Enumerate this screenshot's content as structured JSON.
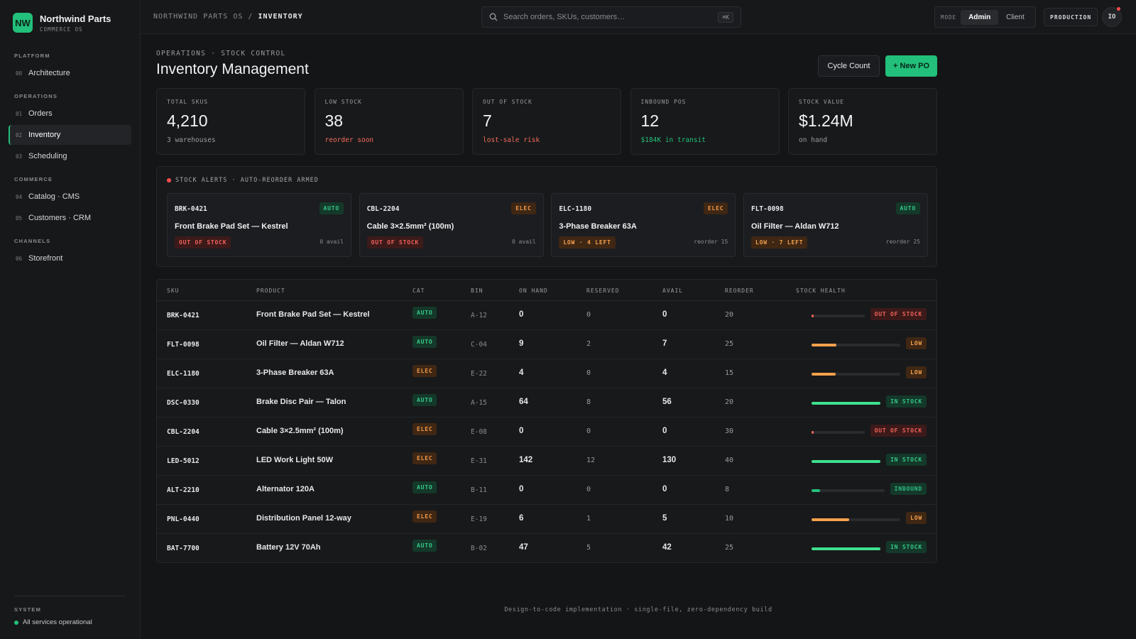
{
  "brand": {
    "logo": "NW",
    "name": "Northwind Parts",
    "sub": "COMMERCE OS"
  },
  "nav": {
    "platform_label": "PLATFORM",
    "platform": [
      {
        "num": "00",
        "label": "Architecture"
      }
    ],
    "operations_label": "OPERATIONS",
    "operations": [
      {
        "num": "01",
        "label": "Orders"
      },
      {
        "num": "02",
        "label": "Inventory",
        "active": true
      },
      {
        "num": "03",
        "label": "Scheduling"
      }
    ],
    "commerce_label": "COMMERCE",
    "commerce": [
      {
        "num": "04",
        "label": "Catalog · CMS"
      },
      {
        "num": "05",
        "label": "Customers · CRM"
      }
    ],
    "channels_label": "CHANNELS",
    "channels": [
      {
        "num": "06",
        "label": "Storefront"
      }
    ]
  },
  "system": {
    "label": "SYSTEM",
    "status": "All services operational"
  },
  "topbar": {
    "crumb_root": "NORTHWIND PARTS OS",
    "crumb_sep": "/",
    "crumb_current": "INVENTORY",
    "search_placeholder": "Search orders, SKUs, customers…",
    "search_kbd": "⌘K",
    "mode_label": "MODE",
    "mode_admin": "Admin",
    "mode_client": "Client",
    "env": "PRODUCTION",
    "avatar": "IO"
  },
  "page": {
    "eyebrow": "OPERATIONS · STOCK CONTROL",
    "title": "Inventory Management",
    "btn_cycle": "Cycle Count",
    "btn_new_po": "+ New PO"
  },
  "kpis": [
    {
      "label": "TOTAL SKUS",
      "value": "4,210",
      "note": "3 warehouses",
      "tone": "muted"
    },
    {
      "label": "LOW STOCK",
      "value": "38",
      "note": "reorder soon",
      "tone": "red"
    },
    {
      "label": "OUT OF STOCK",
      "value": "7",
      "note": "lost-sale risk",
      "tone": "red"
    },
    {
      "label": "INBOUND POS",
      "value": "12",
      "note": "$184K in transit",
      "tone": "green"
    },
    {
      "label": "STOCK VALUE",
      "value": "$1.24M",
      "note": "on hand",
      "tone": "muted"
    }
  ],
  "alerts": {
    "heading": "STOCK ALERTS · AUTO-REORDER ARMED",
    "cards": [
      {
        "sku": "BRK-0421",
        "cat": "AUTO",
        "name": "Front Brake Pad Set — Kestrel",
        "status": "OUT OF STOCK",
        "stat": "0 avail"
      },
      {
        "sku": "CBL-2204",
        "cat": "ELEC",
        "name": "Cable 3×2.5mm² (100m)",
        "status": "OUT OF STOCK",
        "stat": "0 avail"
      },
      {
        "sku": "ELC-1180",
        "cat": "ELEC",
        "name": "3-Phase Breaker 63A",
        "status": "LOW · 4 LEFT",
        "stat": "reorder 15"
      },
      {
        "sku": "FLT-0098",
        "cat": "AUTO",
        "name": "Oil Filter — Aldan W712",
        "status": "LOW · 7 LEFT",
        "stat": "reorder 25"
      }
    ]
  },
  "table": {
    "headers": [
      "SKU",
      "PRODUCT",
      "CAT",
      "BIN",
      "ON HAND",
      "RESERVED",
      "AVAIL",
      "REORDER",
      "STOCK HEALTH"
    ],
    "rows": [
      {
        "sku": "BRK-0421",
        "product": "Front Brake Pad Set — Kestrel",
        "cat": "AUTO",
        "bin": "A-12",
        "on_hand": "0",
        "reserved": "0",
        "avail": "0",
        "reorder": "20",
        "health": "OUT OF STOCK",
        "health_level": 0.02,
        "health_color": "#f0625a"
      },
      {
        "sku": "FLT-0098",
        "product": "Oil Filter — Aldan W712",
        "cat": "AUTO",
        "bin": "C-04",
        "on_hand": "9",
        "reserved": "2",
        "avail": "7",
        "reorder": "25",
        "health": "LOW",
        "health_level": 0.28,
        "health_color": "#f4a14c"
      },
      {
        "sku": "ELC-1180",
        "product": "3-Phase Breaker 63A",
        "cat": "ELEC",
        "bin": "E-22",
        "on_hand": "4",
        "reserved": "0",
        "avail": "4",
        "reorder": "15",
        "health": "LOW",
        "health_level": 0.27,
        "health_color": "#f4a14c"
      },
      {
        "sku": "DSC-0330",
        "product": "Brake Disc Pair — Talon",
        "cat": "AUTO",
        "bin": "A-15",
        "on_hand": "64",
        "reserved": "8",
        "avail": "56",
        "reorder": "20",
        "health": "IN STOCK",
        "health_level": 1.0,
        "health_color": "#3ee08e"
      },
      {
        "sku": "CBL-2204",
        "product": "Cable 3×2.5mm² (100m)",
        "cat": "ELEC",
        "bin": "E-08",
        "on_hand": "0",
        "reserved": "0",
        "avail": "0",
        "reorder": "30",
        "health": "OUT OF STOCK",
        "health_level": 0.02,
        "health_color": "#f0625a"
      },
      {
        "sku": "LED-5012",
        "product": "LED Work Light 50W",
        "cat": "ELEC",
        "bin": "E-31",
        "on_hand": "142",
        "reserved": "12",
        "avail": "130",
        "reorder": "40",
        "health": "IN STOCK",
        "health_level": 1.0,
        "health_color": "#3ee08e"
      },
      {
        "sku": "ALT-2210",
        "product": "Alternator 120A",
        "cat": "AUTO",
        "bin": "B-11",
        "on_hand": "0",
        "reserved": "0",
        "avail": "0",
        "reorder": "8",
        "health": "INBOUND",
        "health_level": 0.12,
        "health_color": "#22c07a"
      },
      {
        "sku": "PNL-0440",
        "product": "Distribution Panel 12-way",
        "cat": "ELEC",
        "bin": "E-19",
        "on_hand": "6",
        "reserved": "1",
        "avail": "5",
        "reorder": "10",
        "health": "LOW",
        "health_level": 0.42,
        "health_color": "#f4a14c"
      },
      {
        "sku": "BAT-7700",
        "product": "Battery 12V 70Ah",
        "cat": "AUTO",
        "bin": "B-02",
        "on_hand": "47",
        "reserved": "5",
        "avail": "42",
        "reorder": "25",
        "health": "IN STOCK",
        "health_level": 1.0,
        "health_color": "#3ee08e"
      }
    ]
  },
  "footer": "Design-to-code implementation · single-file, zero-dependency build",
  "colors": {
    "accent": "#22c07a",
    "danger": "#f0625a",
    "warning": "#f4a14c"
  }
}
